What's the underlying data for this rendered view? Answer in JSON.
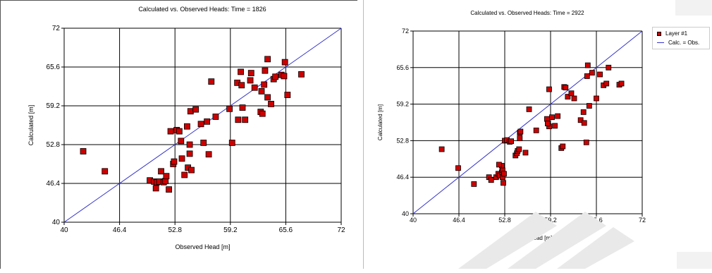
{
  "colors": {
    "marker_fill": "#cc0000",
    "marker_stroke": "#000000",
    "line": "#3333cc",
    "grid": "#000000",
    "watermark": "#e8e8e8"
  },
  "chart_data": [
    {
      "type": "scatter",
      "title": "Calculated vs. Observed Heads: Time = 1826",
      "xlabel": "Observed Head [m]",
      "ylabel": "Calculated [m]",
      "xlim": [
        40,
        72
      ],
      "ylim": [
        40,
        72
      ],
      "xticks": [
        "40",
        "46.4",
        "52.8",
        "59.2",
        "65.6",
        "72"
      ],
      "yticks": [
        "40",
        "46.4",
        "52.8",
        "59.2",
        "65.6",
        "72"
      ],
      "grid": true,
      "reference_line": "y = x",
      "points": [
        [
          42.2,
          51.7
        ],
        [
          44.7,
          48.4
        ],
        [
          49.9,
          46.9
        ],
        [
          50.4,
          46.7
        ],
        [
          50.7,
          46.6
        ],
        [
          51.2,
          48.4
        ],
        [
          51.0,
          46.7
        ],
        [
          51.5,
          46.6
        ],
        [
          51.7,
          46.8
        ],
        [
          51.8,
          47.6
        ],
        [
          52.1,
          45.4
        ],
        [
          50.6,
          45.6
        ],
        [
          52.3,
          55.0
        ],
        [
          52.6,
          49.6
        ],
        [
          52.7,
          50.0
        ],
        [
          53.0,
          55.2
        ],
        [
          53.3,
          55.0
        ],
        [
          53.5,
          53.4
        ],
        [
          53.6,
          50.5
        ],
        [
          53.9,
          47.8
        ],
        [
          54.2,
          55.8
        ],
        [
          54.3,
          49.0
        ],
        [
          54.5,
          51.3
        ],
        [
          54.5,
          52.8
        ],
        [
          54.6,
          58.3
        ],
        [
          54.7,
          48.6
        ],
        [
          55.2,
          58.6
        ],
        [
          55.8,
          56.2
        ],
        [
          56.1,
          53.1
        ],
        [
          56.5,
          56.6
        ],
        [
          56.7,
          51.2
        ],
        [
          57.0,
          63.2
        ],
        [
          57.5,
          57.4
        ],
        [
          59.1,
          58.7
        ],
        [
          59.4,
          53.1
        ],
        [
          60.0,
          63.0
        ],
        [
          60.1,
          56.9
        ],
        [
          60.4,
          64.8
        ],
        [
          60.5,
          62.6
        ],
        [
          60.6,
          58.9
        ],
        [
          60.9,
          56.9
        ],
        [
          61.5,
          63.4
        ],
        [
          61.6,
          64.6
        ],
        [
          62.0,
          62.2
        ],
        [
          62.7,
          58.2
        ],
        [
          62.8,
          61.6
        ],
        [
          62.9,
          57.9
        ],
        [
          63.1,
          62.7
        ],
        [
          63.2,
          65.0
        ],
        [
          63.5,
          60.6
        ],
        [
          63.5,
          66.9
        ],
        [
          63.9,
          59.5
        ],
        [
          64.2,
          63.6
        ],
        [
          64.4,
          64.0
        ],
        [
          65.1,
          64.3
        ],
        [
          65.4,
          64.1
        ],
        [
          65.5,
          66.4
        ],
        [
          65.8,
          61.0
        ],
        [
          67.4,
          64.4
        ]
      ]
    },
    {
      "type": "scatter",
      "title": "Calculated vs. Observed Heads: Time = 2922",
      "xlabel": "Observed Head [m]",
      "ylabel": "Calculated [m]",
      "xlim": [
        40,
        72
      ],
      "ylim": [
        40,
        72
      ],
      "xticks": [
        "40",
        "46.4",
        "52.8",
        "59.2",
        "65.6",
        "72"
      ],
      "yticks": [
        "40",
        "46.4",
        "52.8",
        "59.2",
        "65.6",
        "72"
      ],
      "grid": true,
      "reference_line": "y = x",
      "legend": {
        "position": "right",
        "items": [
          "Layer #1",
          "Calc. = Obs."
        ]
      },
      "points": [
        [
          44.0,
          51.3
        ],
        [
          46.3,
          48.0
        ],
        [
          48.5,
          45.2
        ],
        [
          50.6,
          46.4
        ],
        [
          50.9,
          45.9
        ],
        [
          51.6,
          46.4
        ],
        [
          51.9,
          47.0
        ],
        [
          52.1,
          46.7
        ],
        [
          52.4,
          47.3
        ],
        [
          52.4,
          48.4
        ],
        [
          52.0,
          48.6
        ],
        [
          52.5,
          47.6
        ],
        [
          52.6,
          45.4
        ],
        [
          52.5,
          46.4
        ],
        [
          52.7,
          47.0
        ],
        [
          52.8,
          52.8
        ],
        [
          53.1,
          52.9
        ],
        [
          53.5,
          52.6
        ],
        [
          53.7,
          52.7
        ],
        [
          54.3,
          50.2
        ],
        [
          54.5,
          50.6
        ],
        [
          54.6,
          51.0
        ],
        [
          54.8,
          51.3
        ],
        [
          54.9,
          53.2
        ],
        [
          54.9,
          54.2
        ],
        [
          55.0,
          54.4
        ],
        [
          55.7,
          50.7
        ],
        [
          56.2,
          58.3
        ],
        [
          57.2,
          54.6
        ],
        [
          58.7,
          56.6
        ],
        [
          59.4,
          56.9
        ],
        [
          60.7,
          51.5
        ],
        [
          60.9,
          51.8
        ],
        [
          59.0,
          55.3
        ],
        [
          58.8,
          55.8
        ],
        [
          59.8,
          55.4
        ],
        [
          60.2,
          57.1
        ],
        [
          61.1,
          62.2
        ],
        [
          61.3,
          62.1
        ],
        [
          61.6,
          60.5
        ],
        [
          62.1,
          61.1
        ],
        [
          62.5,
          60.2
        ],
        [
          63.4,
          56.4
        ],
        [
          63.9,
          55.9
        ],
        [
          64.2,
          52.5
        ],
        [
          63.8,
          57.8
        ],
        [
          64.6,
          58.9
        ],
        [
          64.3,
          64.1
        ],
        [
          64.4,
          66.0
        ],
        [
          65.0,
          64.7
        ],
        [
          65.6,
          60.2
        ],
        [
          66.1,
          64.4
        ],
        [
          66.6,
          62.5
        ],
        [
          67.0,
          62.8
        ],
        [
          67.3,
          65.6
        ],
        [
          68.8,
          62.6
        ],
        [
          69.1,
          62.8
        ],
        [
          59.0,
          61.8
        ]
      ]
    }
  ]
}
